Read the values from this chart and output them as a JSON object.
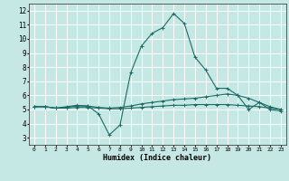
{
  "title": "",
  "xlabel": "Humidex (Indice chaleur)",
  "bg_color": "#c5e8e5",
  "line_color": "#1a6b65",
  "grid_color": "#ffffff",
  "xlim": [
    -0.5,
    23.5
  ],
  "ylim": [
    2.5,
    12.5
  ],
  "xticks": [
    0,
    1,
    2,
    3,
    4,
    5,
    6,
    7,
    8,
    9,
    10,
    11,
    12,
    13,
    14,
    15,
    16,
    17,
    18,
    19,
    20,
    21,
    22,
    23
  ],
  "yticks": [
    3,
    4,
    5,
    6,
    7,
    8,
    9,
    10,
    11,
    12
  ],
  "line1_x": [
    0,
    1,
    2,
    3,
    4,
    5,
    6,
    7,
    8,
    9,
    10,
    11,
    12,
    13,
    14,
    15,
    16,
    17,
    18,
    19,
    20,
    21,
    22,
    23
  ],
  "line1_y": [
    5.2,
    5.2,
    5.1,
    5.2,
    5.3,
    5.25,
    4.7,
    3.2,
    3.9,
    7.6,
    9.5,
    10.4,
    10.8,
    11.8,
    11.1,
    8.7,
    7.8,
    6.5,
    6.5,
    6.0,
    5.0,
    5.5,
    5.0,
    4.9
  ],
  "line2_x": [
    0,
    1,
    2,
    3,
    4,
    5,
    6,
    7,
    8,
    9,
    10,
    11,
    12,
    13,
    14,
    15,
    16,
    17,
    18,
    19,
    20,
    21,
    22,
    23
  ],
  "line2_y": [
    5.2,
    5.2,
    5.1,
    5.15,
    5.25,
    5.25,
    5.15,
    5.1,
    5.15,
    5.25,
    5.4,
    5.5,
    5.6,
    5.7,
    5.75,
    5.8,
    5.9,
    6.0,
    6.1,
    6.0,
    5.8,
    5.5,
    5.2,
    5.0
  ],
  "line3_x": [
    0,
    1,
    2,
    3,
    4,
    5,
    6,
    7,
    8,
    9,
    10,
    11,
    12,
    13,
    14,
    15,
    16,
    17,
    18,
    19,
    20,
    21,
    22,
    23
  ],
  "line3_y": [
    5.2,
    5.2,
    5.1,
    5.1,
    5.15,
    5.15,
    5.1,
    5.05,
    5.05,
    5.1,
    5.15,
    5.2,
    5.25,
    5.3,
    5.3,
    5.35,
    5.35,
    5.35,
    5.35,
    5.3,
    5.25,
    5.2,
    5.1,
    5.0
  ]
}
